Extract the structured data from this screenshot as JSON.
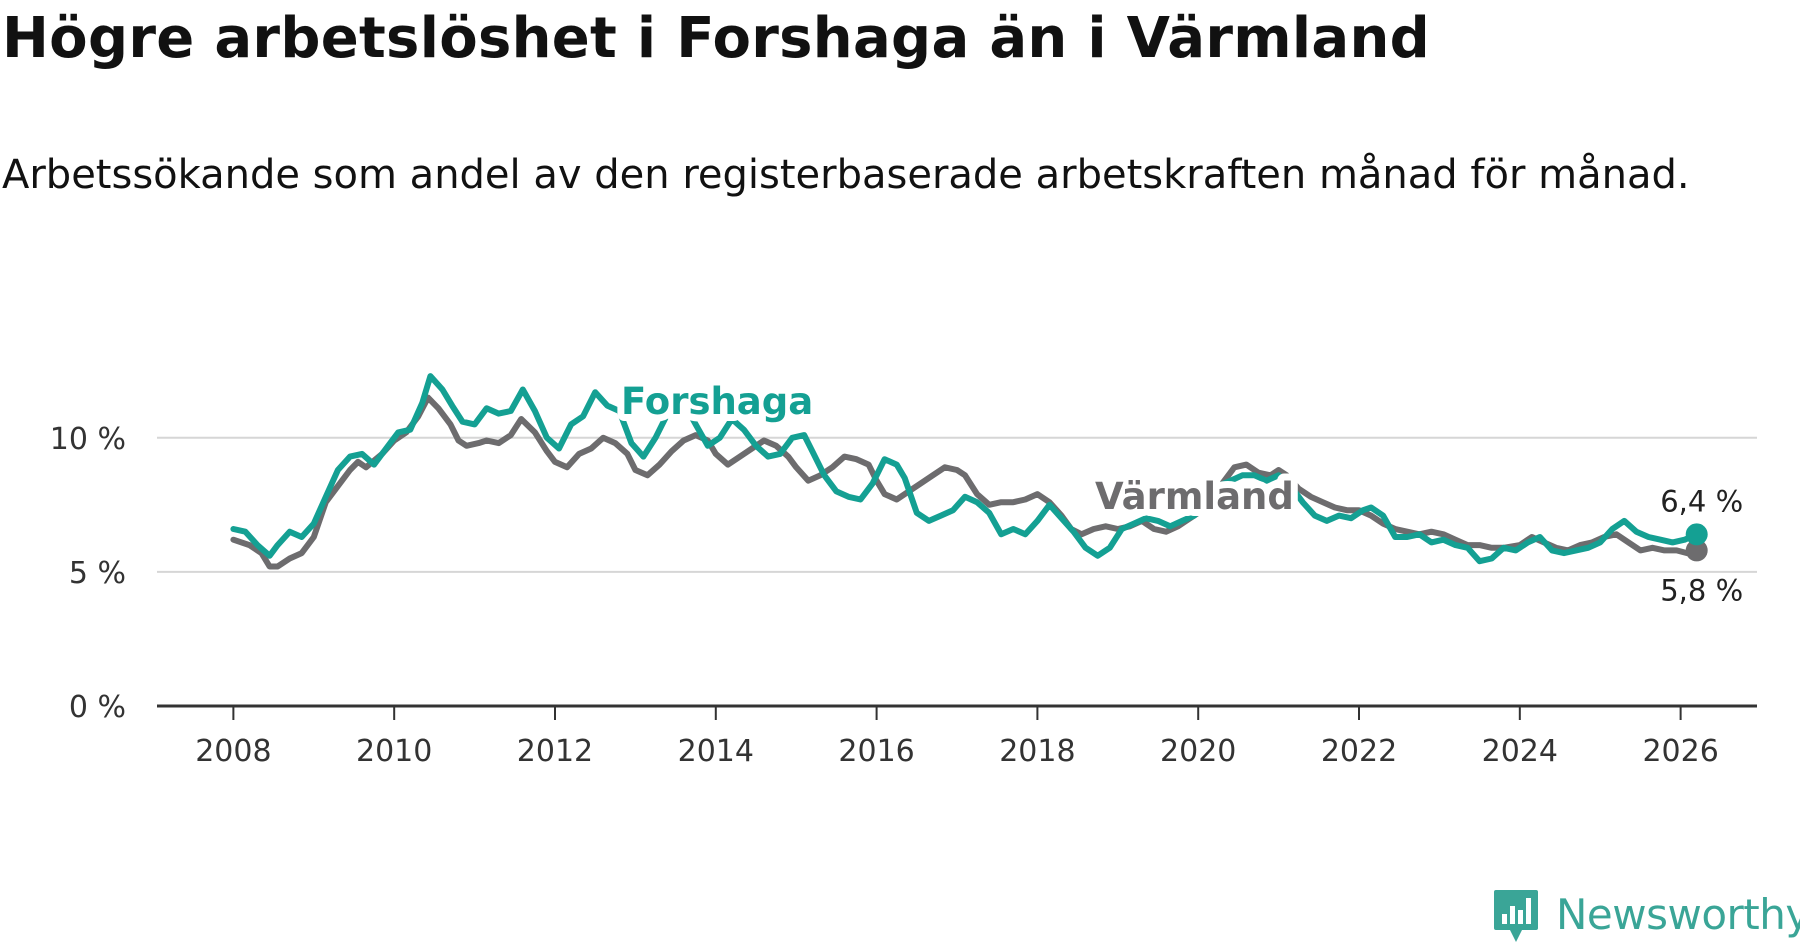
{
  "title": "Högre arbetslöshet i Forshaga än i Värmland",
  "subtitle": "Arbetssökande som andel av den registerbaserade arbetskraften månad för månad.",
  "brand": {
    "name": "Newsworthy",
    "icon": "newsworthy-logo-icon",
    "color": "#3aa597"
  },
  "chart_data": {
    "type": "line",
    "title": "Högre arbetslöshet i Forshaga än i Värmland",
    "subtitle": "Arbetssökande som andel av den registerbaserade arbetskraften månad för månad.",
    "xlabel": "",
    "ylabel": "",
    "xlim": [
      2007.05,
      2026.95
    ],
    "ylim": [
      0,
      12.9
    ],
    "x_ticks": [
      2008,
      2010,
      2012,
      2014,
      2016,
      2018,
      2020,
      2022,
      2024,
      2026
    ],
    "x_tick_labels": [
      "2008",
      "2010",
      "2012",
      "2014",
      "2016",
      "2018",
      "2020",
      "2022",
      "2024",
      "2026"
    ],
    "y_ticks": [
      0,
      5,
      10
    ],
    "y_tick_labels": [
      "0 %",
      "5 %",
      "10 %"
    ],
    "grid": true,
    "legend": "direct-labels",
    "series": [
      {
        "name": "Värmland",
        "label": "Värmland",
        "color": "#6d6c6e",
        "end_label": "5,8 %",
        "points": [
          [
            2008.0,
            6.2
          ],
          [
            2008.2,
            6.0
          ],
          [
            2008.35,
            5.7
          ],
          [
            2008.45,
            5.2
          ],
          [
            2008.55,
            5.2
          ],
          [
            2008.7,
            5.5
          ],
          [
            2008.85,
            5.7
          ],
          [
            2009.0,
            6.3
          ],
          [
            2009.15,
            7.6
          ],
          [
            2009.3,
            8.2
          ],
          [
            2009.45,
            8.8
          ],
          [
            2009.55,
            9.1
          ],
          [
            2009.65,
            8.9
          ],
          [
            2009.85,
            9.4
          ],
          [
            2010.0,
            9.9
          ],
          [
            2010.15,
            10.2
          ],
          [
            2010.3,
            10.8
          ],
          [
            2010.42,
            11.5
          ],
          [
            2010.55,
            11.1
          ],
          [
            2010.7,
            10.5
          ],
          [
            2010.8,
            9.9
          ],
          [
            2010.9,
            9.7
          ],
          [
            2011.05,
            9.8
          ],
          [
            2011.15,
            9.9
          ],
          [
            2011.3,
            9.8
          ],
          [
            2011.45,
            10.1
          ],
          [
            2011.58,
            10.7
          ],
          [
            2011.75,
            10.2
          ],
          [
            2011.9,
            9.5
          ],
          [
            2012.0,
            9.1
          ],
          [
            2012.15,
            8.9
          ],
          [
            2012.3,
            9.4
          ],
          [
            2012.45,
            9.6
          ],
          [
            2012.6,
            10.0
          ],
          [
            2012.75,
            9.8
          ],
          [
            2012.9,
            9.4
          ],
          [
            2013.0,
            8.8
          ],
          [
            2013.15,
            8.6
          ],
          [
            2013.3,
            9.0
          ],
          [
            2013.45,
            9.5
          ],
          [
            2013.6,
            9.9
          ],
          [
            2013.75,
            10.1
          ],
          [
            2013.9,
            9.9
          ],
          [
            2014.0,
            9.4
          ],
          [
            2014.15,
            9.0
          ],
          [
            2014.3,
            9.3
          ],
          [
            2014.45,
            9.6
          ],
          [
            2014.6,
            9.9
          ],
          [
            2014.75,
            9.7
          ],
          [
            2014.9,
            9.3
          ],
          [
            2015.0,
            8.9
          ],
          [
            2015.15,
            8.4
          ],
          [
            2015.3,
            8.6
          ],
          [
            2015.45,
            8.9
          ],
          [
            2015.6,
            9.3
          ],
          [
            2015.75,
            9.2
          ],
          [
            2015.9,
            9.0
          ],
          [
            2016.0,
            8.4
          ],
          [
            2016.1,
            7.9
          ],
          [
            2016.25,
            7.7
          ],
          [
            2016.4,
            8.0
          ],
          [
            2016.55,
            8.3
          ],
          [
            2016.7,
            8.6
          ],
          [
            2016.85,
            8.9
          ],
          [
            2017.0,
            8.8
          ],
          [
            2017.1,
            8.6
          ],
          [
            2017.25,
            7.9
          ],
          [
            2017.4,
            7.5
          ],
          [
            2017.55,
            7.6
          ],
          [
            2017.7,
            7.6
          ],
          [
            2017.85,
            7.7
          ],
          [
            2018.0,
            7.9
          ],
          [
            2018.15,
            7.6
          ],
          [
            2018.3,
            7.1
          ],
          [
            2018.42,
            6.6
          ],
          [
            2018.55,
            6.4
          ],
          [
            2018.7,
            6.6
          ],
          [
            2018.85,
            6.7
          ],
          [
            2019.0,
            6.6
          ],
          [
            2019.15,
            6.7
          ],
          [
            2019.3,
            6.9
          ],
          [
            2019.45,
            6.6
          ],
          [
            2019.6,
            6.5
          ],
          [
            2019.75,
            6.7
          ],
          [
            2019.85,
            6.9
          ],
          [
            2020.0,
            7.2
          ],
          [
            2020.15,
            7.6
          ],
          [
            2020.3,
            8.3
          ],
          [
            2020.45,
            8.9
          ],
          [
            2020.6,
            9.0
          ],
          [
            2020.75,
            8.7
          ],
          [
            2020.9,
            8.6
          ],
          [
            2021.0,
            8.8
          ],
          [
            2021.1,
            8.6
          ],
          [
            2021.25,
            8.1
          ],
          [
            2021.4,
            7.8
          ],
          [
            2021.55,
            7.6
          ],
          [
            2021.7,
            7.4
          ],
          [
            2021.85,
            7.3
          ],
          [
            2022.0,
            7.3
          ],
          [
            2022.15,
            7.1
          ],
          [
            2022.3,
            6.8
          ],
          [
            2022.45,
            6.6
          ],
          [
            2022.6,
            6.5
          ],
          [
            2022.75,
            6.4
          ],
          [
            2022.9,
            6.5
          ],
          [
            2023.05,
            6.4
          ],
          [
            2023.2,
            6.2
          ],
          [
            2023.35,
            6.0
          ],
          [
            2023.5,
            6.0
          ],
          [
            2023.65,
            5.9
          ],
          [
            2023.8,
            5.9
          ],
          [
            2024.0,
            6.0
          ],
          [
            2024.15,
            6.3
          ],
          [
            2024.3,
            6.1
          ],
          [
            2024.45,
            5.9
          ],
          [
            2024.6,
            5.8
          ],
          [
            2024.75,
            6.0
          ],
          [
            2024.9,
            6.1
          ],
          [
            2025.05,
            6.3
          ],
          [
            2025.2,
            6.4
          ],
          [
            2025.35,
            6.1
          ],
          [
            2025.5,
            5.8
          ],
          [
            2025.65,
            5.9
          ],
          [
            2025.8,
            5.8
          ],
          [
            2025.95,
            5.8
          ],
          [
            2026.08,
            5.7
          ],
          [
            2026.2,
            5.8
          ]
        ]
      },
      {
        "name": "Forshaga",
        "label": "Forshaga",
        "color": "#14a093",
        "end_label": "6,4 %",
        "points": [
          [
            2008.0,
            6.6
          ],
          [
            2008.15,
            6.5
          ],
          [
            2008.3,
            6.0
          ],
          [
            2008.45,
            5.6
          ],
          [
            2008.55,
            6.0
          ],
          [
            2008.7,
            6.5
          ],
          [
            2008.85,
            6.3
          ],
          [
            2009.0,
            6.8
          ],
          [
            2009.15,
            7.8
          ],
          [
            2009.3,
            8.8
          ],
          [
            2009.45,
            9.3
          ],
          [
            2009.6,
            9.4
          ],
          [
            2009.75,
            9.0
          ],
          [
            2009.9,
            9.6
          ],
          [
            2010.05,
            10.2
          ],
          [
            2010.2,
            10.3
          ],
          [
            2010.35,
            11.3
          ],
          [
            2010.45,
            12.3
          ],
          [
            2010.6,
            11.8
          ],
          [
            2010.72,
            11.2
          ],
          [
            2010.85,
            10.6
          ],
          [
            2011.0,
            10.5
          ],
          [
            2011.15,
            11.1
          ],
          [
            2011.3,
            10.9
          ],
          [
            2011.45,
            11.0
          ],
          [
            2011.6,
            11.8
          ],
          [
            2011.75,
            11.0
          ],
          [
            2011.9,
            10.0
          ],
          [
            2012.05,
            9.6
          ],
          [
            2012.2,
            10.5
          ],
          [
            2012.35,
            10.8
          ],
          [
            2012.5,
            11.7
          ],
          [
            2012.65,
            11.2
          ],
          [
            2012.8,
            11.0
          ],
          [
            2012.95,
            9.8
          ],
          [
            2013.1,
            9.3
          ],
          [
            2013.25,
            10.0
          ],
          [
            2013.4,
            10.9
          ],
          [
            2013.55,
            11.6
          ],
          [
            2013.75,
            10.5
          ],
          [
            2013.9,
            9.7
          ],
          [
            2014.05,
            10.0
          ],
          [
            2014.2,
            10.7
          ],
          [
            2014.35,
            10.3
          ],
          [
            2014.5,
            9.7
          ],
          [
            2014.65,
            9.3
          ],
          [
            2014.8,
            9.4
          ],
          [
            2014.95,
            10.0
          ],
          [
            2015.1,
            10.1
          ],
          [
            2015.2,
            9.5
          ],
          [
            2015.35,
            8.6
          ],
          [
            2015.5,
            8.0
          ],
          [
            2015.65,
            7.8
          ],
          [
            2015.8,
            7.7
          ],
          [
            2015.95,
            8.3
          ],
          [
            2016.1,
            9.2
          ],
          [
            2016.25,
            9.0
          ],
          [
            2016.35,
            8.5
          ],
          [
            2016.5,
            7.2
          ],
          [
            2016.65,
            6.9
          ],
          [
            2016.8,
            7.1
          ],
          [
            2016.95,
            7.3
          ],
          [
            2017.1,
            7.8
          ],
          [
            2017.25,
            7.6
          ],
          [
            2017.4,
            7.2
          ],
          [
            2017.55,
            6.4
          ],
          [
            2017.7,
            6.6
          ],
          [
            2017.85,
            6.4
          ],
          [
            2018.0,
            6.9
          ],
          [
            2018.15,
            7.5
          ],
          [
            2018.3,
            7.0
          ],
          [
            2018.45,
            6.5
          ],
          [
            2018.6,
            5.9
          ],
          [
            2018.75,
            5.6
          ],
          [
            2018.9,
            5.9
          ],
          [
            2019.05,
            6.6
          ],
          [
            2019.2,
            6.8
          ],
          [
            2019.35,
            7.0
          ],
          [
            2019.5,
            6.9
          ],
          [
            2019.65,
            6.7
          ],
          [
            2019.8,
            6.9
          ],
          [
            2019.95,
            7.1
          ],
          [
            2020.1,
            7.6
          ],
          [
            2020.25,
            8.2
          ],
          [
            2020.4,
            8.4
          ],
          [
            2020.55,
            8.6
          ],
          [
            2020.7,
            8.6
          ],
          [
            2020.85,
            8.4
          ],
          [
            2021.0,
            8.6
          ],
          [
            2021.15,
            8.2
          ],
          [
            2021.3,
            7.6
          ],
          [
            2021.45,
            7.1
          ],
          [
            2021.6,
            6.9
          ],
          [
            2021.75,
            7.1
          ],
          [
            2021.9,
            7.0
          ],
          [
            2022.05,
            7.3
          ],
          [
            2022.15,
            7.4
          ],
          [
            2022.3,
            7.1
          ],
          [
            2022.45,
            6.3
          ],
          [
            2022.6,
            6.3
          ],
          [
            2022.75,
            6.4
          ],
          [
            2022.9,
            6.1
          ],
          [
            2023.05,
            6.2
          ],
          [
            2023.2,
            6.0
          ],
          [
            2023.35,
            5.9
          ],
          [
            2023.5,
            5.4
          ],
          [
            2023.65,
            5.5
          ],
          [
            2023.8,
            5.9
          ],
          [
            2023.95,
            5.8
          ],
          [
            2024.1,
            6.1
          ],
          [
            2024.25,
            6.3
          ],
          [
            2024.4,
            5.8
          ],
          [
            2024.55,
            5.7
          ],
          [
            2024.7,
            5.8
          ],
          [
            2024.85,
            5.9
          ],
          [
            2025.0,
            6.1
          ],
          [
            2025.15,
            6.6
          ],
          [
            2025.3,
            6.9
          ],
          [
            2025.45,
            6.5
          ],
          [
            2025.6,
            6.3
          ],
          [
            2025.75,
            6.2
          ],
          [
            2025.9,
            6.1
          ],
          [
            2026.05,
            6.2
          ],
          [
            2026.2,
            6.4
          ]
        ]
      }
    ],
    "annotations": [
      {
        "text": "Forshaga",
        "series": "Forshaga",
        "color": "#14a093"
      },
      {
        "text": "Värmland",
        "series": "Värmland",
        "color": "#6d6c6e"
      }
    ]
  }
}
